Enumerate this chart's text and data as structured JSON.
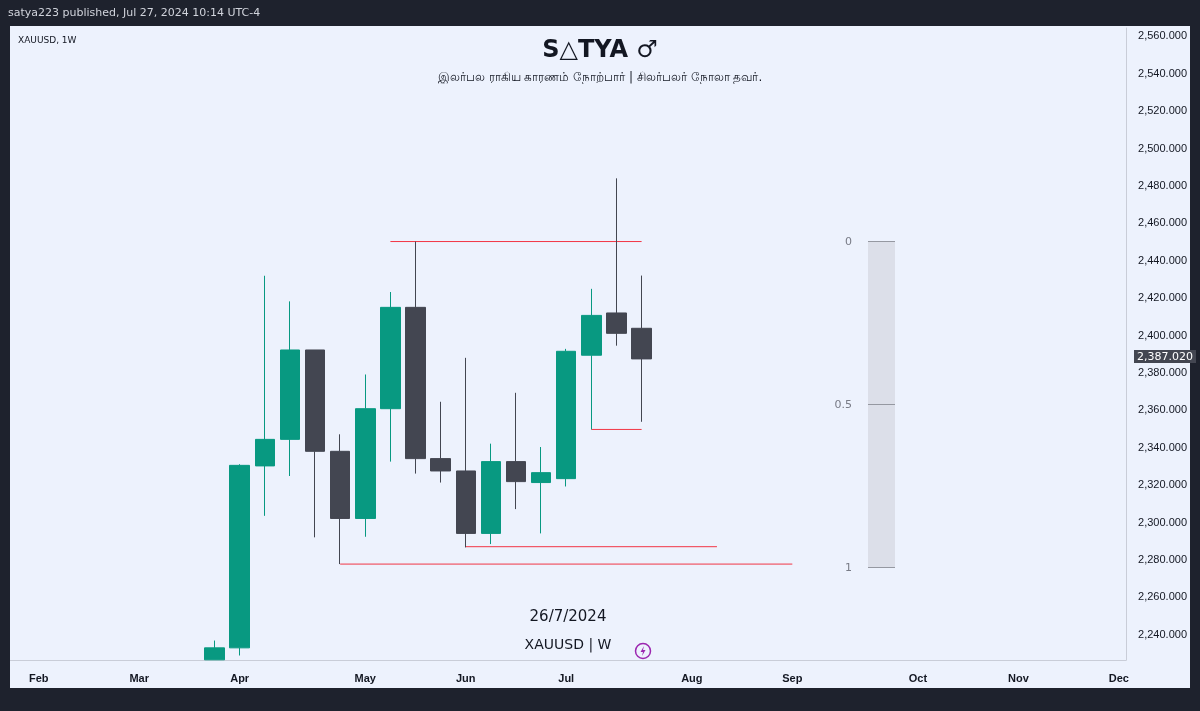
{
  "chart_data": {
    "type": "candlestick",
    "title": "S△TYA ♂",
    "subtitle": "இலர்பல ராகிய காரணம் நோற்பார் | சிலர்பலர் நோலா தவர்.",
    "x": [
      "2024-03-25",
      "2024-04-01",
      "2024-04-08",
      "2024-04-15",
      "2024-04-22",
      "2024-04-29",
      "2024-05-06",
      "2024-05-13",
      "2024-05-20",
      "2024-05-27",
      "2024-06-03",
      "2024-06-10",
      "2024-06-17",
      "2024-06-24",
      "2024-07-01",
      "2024-07-08",
      "2024-07-15",
      "2024-07-22"
    ],
    "ohlc": [
      [
        2226.1,
        2236.4,
        2226.1,
        2232.5
      ],
      [
        2232.5,
        2330.7,
        2228.4,
        2330.1
      ],
      [
        2329.8,
        2431.5,
        2303.1,
        2344.0
      ],
      [
        2344.0,
        2417.8,
        2324.4,
        2391.8
      ],
      [
        2391.8,
        2391.8,
        2291.6,
        2337.6
      ],
      [
        2337.6,
        2346.7,
        2277.3,
        2301.7
      ],
      [
        2301.7,
        2378.7,
        2291.9,
        2360.4
      ],
      [
        2360.4,
        2422.8,
        2332.1,
        2414.6
      ],
      [
        2414.6,
        2449.8,
        2325.7,
        2333.7
      ],
      [
        2333.7,
        2364.1,
        2320.9,
        2327.1
      ],
      [
        2327.1,
        2387.6,
        2286.2,
        2293.7
      ],
      [
        2293.7,
        2341.7,
        2288.0,
        2332.1
      ],
      [
        2332.1,
        2368.9,
        2306.7,
        2321.4
      ],
      [
        2320.9,
        2339.9,
        2293.7,
        2326.2
      ],
      [
        2323.0,
        2392.4,
        2318.8,
        2391.1
      ],
      [
        2389.0,
        2424.5,
        2349.3,
        2410.3
      ],
      [
        2411.6,
        2483.6,
        2394.1,
        2400.7
      ],
      [
        2403.4,
        2431.6,
        2353.4,
        2387.02
      ]
    ],
    "colors": [
      "#089981",
      "#089981",
      "#089981",
      "#089981",
      "#434651",
      "#434651",
      "#089981",
      "#089981",
      "#434651",
      "#434651",
      "#434651",
      "#089981",
      "#434651",
      "#089981",
      "#089981",
      "#089981",
      "#434651",
      "#434651"
    ],
    "series": [
      {
        "type": "line",
        "color": "#f23645",
        "x": [
          "2024-05-13",
          "2024-07-22"
        ],
        "values": [
          2449.8,
          2449.8
        ]
      },
      {
        "type": "line",
        "color": "#f23645",
        "x": [
          "2024-07-08",
          "2024-07-22"
        ],
        "values": [
          2349.3,
          2349.3
        ]
      },
      {
        "type": "line",
        "color": "#f23645",
        "x": [
          "2024-06-03",
          "2024-08-12"
        ],
        "values": [
          2286.6,
          2286.6
        ]
      },
      {
        "type": "line",
        "color": "#f23645",
        "x": [
          "2024-04-29",
          "2024-09-02"
        ],
        "values": [
          2277.3,
          2277.3
        ]
      }
    ],
    "xlim": [
      "2024-01-28",
      "2024-12-04"
    ],
    "xticks": [
      {
        "value": "2024-02-05",
        "label": "Feb"
      },
      {
        "value": "2024-03-04",
        "label": "Mar"
      },
      {
        "value": "2024-04-01",
        "label": "Apr"
      },
      {
        "value": "2024-05-06",
        "label": "May"
      },
      {
        "value": "2024-06-03",
        "label": "Jun"
      },
      {
        "value": "2024-07-01",
        "label": "Jul"
      },
      {
        "value": "2024-08-05",
        "label": "Aug"
      },
      {
        "value": "2024-09-02",
        "label": "Sep"
      },
      {
        "value": "2024-10-07",
        "label": "Oct"
      },
      {
        "value": "2024-11-04",
        "label": "Nov"
      },
      {
        "value": "2024-12-02",
        "label": "Dec"
      }
    ],
    "ylim": [
      2226,
      2564
    ],
    "yticks": [
      {
        "value": 2240,
        "label": "2,240.000"
      },
      {
        "value": 2260,
        "label": "2,260.000"
      },
      {
        "value": 2280,
        "label": "2,280.000"
      },
      {
        "value": 2300,
        "label": "2,300.000"
      },
      {
        "value": 2320,
        "label": "2,320.000"
      },
      {
        "value": 2340,
        "label": "2,340.000"
      },
      {
        "value": 2360,
        "label": "2,360.000"
      },
      {
        "value": 2380,
        "label": "2,380.000"
      },
      {
        "value": 2400,
        "label": "2,400.000"
      },
      {
        "value": 2420,
        "label": "2,420.000"
      },
      {
        "value": 2440,
        "label": "2,440.000"
      },
      {
        "value": 2460,
        "label": "2,460.000"
      },
      {
        "value": 2480,
        "label": "2,480.000"
      },
      {
        "value": 2500,
        "label": "2,500.000"
      },
      {
        "value": 2520,
        "label": "2,520.000"
      },
      {
        "value": 2540,
        "label": "2,540.000"
      },
      {
        "value": 2560,
        "label": "2,560.000"
      }
    ],
    "annotations": [
      "satya223 published, Jul 27, 2024 10:14 UTC-4",
      "XAUUSD, 1W",
      "26/7/2024",
      "XAUUSD | W",
      "2,387.020",
      "0",
      "0.5",
      "1"
    ],
    "grid": false
  }
}
